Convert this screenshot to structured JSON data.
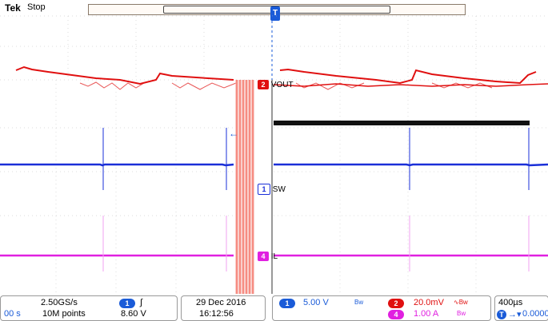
{
  "header": {
    "brand": "Tek",
    "status": "Stop"
  },
  "channels": {
    "vout_label": "VOUT",
    "sw_label": "SW",
    "il_label": "IL",
    "ch1_number": "1",
    "ch2_number": "2",
    "ch4_number": "4"
  },
  "footer": {
    "time_left": "00 s",
    "sample_rate": "2.50GS/s",
    "record_length": "10M points",
    "trigger_channel": "1",
    "trigger_level": "8.60 V",
    "date": "29 Dec  2016",
    "time": "16:12:56",
    "ch1_scale": "5.00 V",
    "ch2_scale": "20.0mV",
    "ch4_scale": "1.00 A",
    "timebase": "400µs",
    "trigger_position": "0.0000"
  },
  "colors": {
    "ch1": "#1a2fd8",
    "ch2": "#e01010",
    "ch4": "#e020e0",
    "zoom_band": "#f24a3a"
  }
}
